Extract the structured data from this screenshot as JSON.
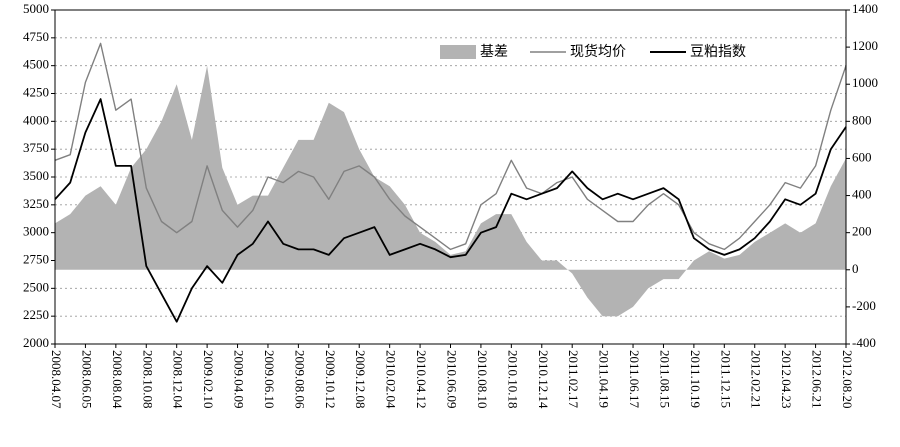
{
  "chart_data": {
    "type": "line",
    "categories": [
      "2008.04.07",
      null,
      "2008.06.05",
      null,
      "2008.08.04",
      null,
      "2008.10.08",
      null,
      "2008.12.04",
      null,
      "2009.02.10",
      null,
      "2009.04.09",
      null,
      "2009.06.10",
      null,
      "2009.08.06",
      null,
      "2009.10.12",
      null,
      "2009.12.08",
      null,
      "2010.02.04",
      null,
      "2010.04.12",
      null,
      "2010.06.09",
      null,
      "2010.08.10",
      null,
      "2010.10.18",
      null,
      "2010.12.14",
      null,
      "2011.02.17",
      null,
      "2011.04.19",
      null,
      "2011.06.17",
      null,
      "2011.08.15",
      null,
      "2011.10.19",
      null,
      "2011.12.15",
      null,
      "2012.02.21",
      null,
      "2012.04.23",
      null,
      "2012.06.21",
      null,
      "2012.08.20"
    ],
    "series": [
      {
        "name": "基差",
        "color": "#b3b3b3",
        "axis": "y2",
        "style": "area",
        "values": [
          250,
          300,
          400,
          450,
          350,
          550,
          650,
          800,
          1000,
          700,
          1100,
          550,
          350,
          400,
          400,
          550,
          700,
          700,
          900,
          850,
          650,
          500,
          450,
          350,
          200,
          150,
          80,
          100,
          250,
          300,
          300,
          150,
          50,
          50,
          -20,
          -150,
          -250,
          -250,
          -200,
          -100,
          -50,
          -50,
          50,
          100,
          60,
          80,
          150,
          200,
          250,
          200,
          250,
          450,
          600
        ]
      },
      {
        "name": "现货均价",
        "color": "#808080",
        "style": "line",
        "values": [
          3650,
          3700,
          4350,
          4700,
          4100,
          4200,
          3400,
          3100,
          3000,
          3100,
          3600,
          3200,
          3050,
          3200,
          3500,
          3450,
          3550,
          3500,
          3300,
          3550,
          3600,
          3500,
          3300,
          3150,
          3050,
          2950,
          2850,
          2900,
          3250,
          3350,
          3650,
          3400,
          3350,
          3450,
          3500,
          3300,
          3200,
          3100,
          3100,
          3250,
          3350,
          3250,
          3000,
          2900,
          2850,
          2950,
          3100,
          3250,
          3450,
          3400,
          3600,
          4100,
          4500
        ]
      },
      {
        "name": "豆粕指数",
        "color": "#000000",
        "style": "line",
        "values": [
          3300,
          3450,
          3900,
          4200,
          3600,
          3600,
          2700,
          2450,
          2200,
          2500,
          2700,
          2550,
          2800,
          2900,
          3100,
          2900,
          2850,
          2850,
          2800,
          2950,
          3000,
          3050,
          2800,
          2850,
          2900,
          2850,
          2780,
          2800,
          3000,
          3050,
          3350,
          3300,
          3350,
          3400,
          3550,
          3400,
          3300,
          3350,
          3300,
          3350,
          3400,
          3300,
          2950,
          2850,
          2800,
          2850,
          2950,
          3100,
          3300,
          3250,
          3350,
          3750,
          3950
        ]
      }
    ],
    "ylim": [
      2000,
      5000
    ],
    "yticks": [
      2000,
      2250,
      2500,
      2750,
      3000,
      3250,
      3500,
      3750,
      4000,
      4250,
      4500,
      4750,
      5000
    ],
    "y2lim": [
      -400,
      1400
    ],
    "y2ticks": [
      -400,
      -200,
      0,
      200,
      400,
      600,
      800,
      1000,
      1200,
      1400
    ],
    "grid": true,
    "legend": "upper right"
  }
}
